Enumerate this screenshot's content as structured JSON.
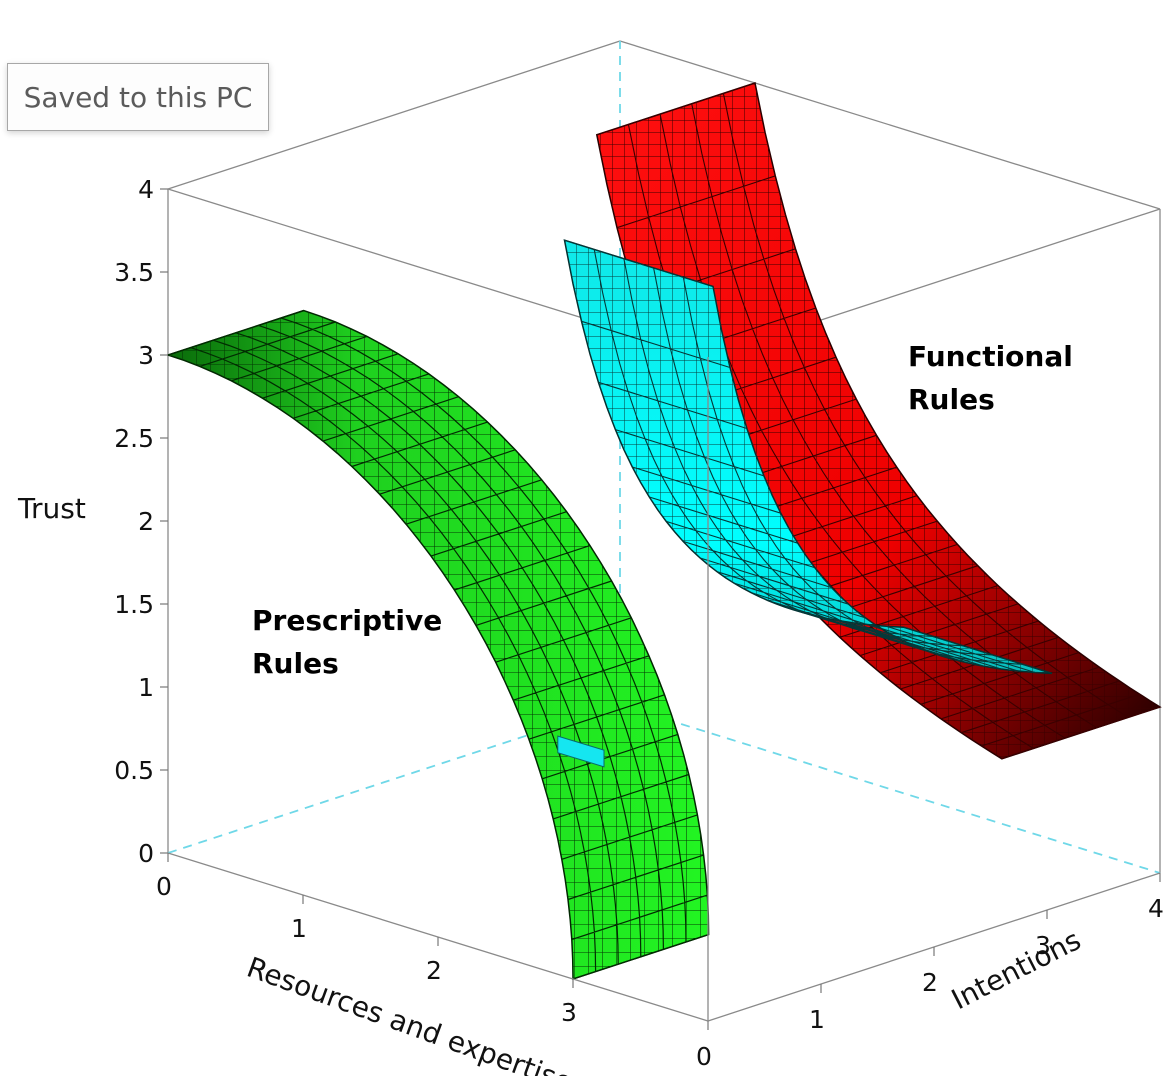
{
  "save_status": "Saved to this PC",
  "chart_data": {
    "type": "surface3d",
    "title": "",
    "xlabel": "Resources and expertise",
    "ylabel": "Intentions",
    "zlabel": "Trust",
    "xlim": [
      0,
      4
    ],
    "ylim": [
      0,
      4
    ],
    "zlim": [
      0,
      4
    ],
    "x_ticks": [
      "0",
      "1",
      "2",
      "3"
    ],
    "y_ticks": [
      "0",
      "1",
      "2",
      "3",
      "4"
    ],
    "z_ticks": [
      "0",
      "0.5",
      "1",
      "1.5",
      "2",
      "2.5",
      "3",
      "3.5",
      "4"
    ],
    "annotations": [
      {
        "text": [
          "Prescriptive",
          "Rules"
        ]
      },
      {
        "text": [
          "Functional",
          "Rules"
        ]
      }
    ],
    "series": [
      {
        "label": "Prescriptive Rules surface",
        "color": "#00ff00",
        "x_range": [
          0,
          3
        ],
        "y": 2,
        "z_range": [
          0,
          3
        ],
        "relation": "x^2 + z^2 = 9 (quarter-circle cylinder)"
      },
      {
        "label": "Functional Rules surface (red)",
        "color": "#ff0000",
        "x_range": [
          1,
          4
        ],
        "z_range": [
          1,
          4
        ],
        "relation": "x * z = 4 (hyperbolic sheet)"
      },
      {
        "label": "Functional Rules surface (cyan)",
        "color": "#00ffff",
        "y_range": [
          1,
          4
        ],
        "z_range": [
          1,
          4
        ],
        "relation": "y * z = 4 (hyperbolic sheet)"
      }
    ]
  }
}
